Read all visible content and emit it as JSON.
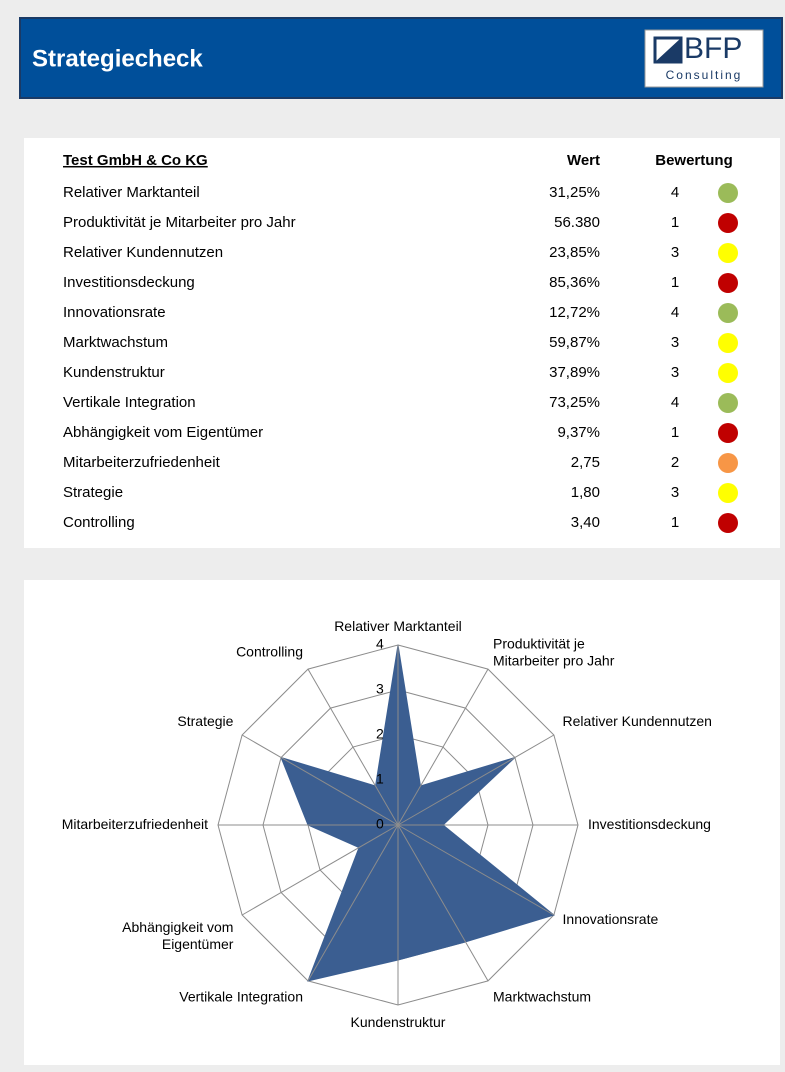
{
  "header": {
    "title": "Strategiecheck",
    "logo": {
      "name": "BFP",
      "sub": "Consulting"
    }
  },
  "table": {
    "columns": [
      "Test GmbH & Co KG",
      "Wert",
      "Bewertung"
    ],
    "rows": [
      {
        "label": "Relativer Marktanteil",
        "value": "31,25%",
        "rating": 4,
        "color": "#9bbb59"
      },
      {
        "label": "Produktivität je Mitarbeiter pro Jahr",
        "value": "56.380",
        "rating": 1,
        "color": "#c00000"
      },
      {
        "label": "Relativer Kundennutzen",
        "value": "23,85%",
        "rating": 3,
        "color": "#ffff00"
      },
      {
        "label": "Investitionsdeckung",
        "value": "85,36%",
        "rating": 1,
        "color": "#c00000"
      },
      {
        "label": "Innovationsrate",
        "value": "12,72%",
        "rating": 4,
        "color": "#9bbb59"
      },
      {
        "label": "Marktwachstum",
        "value": "59,87%",
        "rating": 3,
        "color": "#ffff00"
      },
      {
        "label": "Kundenstruktur",
        "value": "37,89%",
        "rating": 3,
        "color": "#ffff00"
      },
      {
        "label": "Vertikale Integration",
        "value": "73,25%",
        "rating": 4,
        "color": "#9bbb59"
      },
      {
        "label": "Abhängigkeit vom Eigentümer",
        "value": "9,37%",
        "rating": 1,
        "color": "#c00000"
      },
      {
        "label": "Mitarbeiterzufriedenheit",
        "value": "2,75",
        "rating": 2,
        "color": "#f79646"
      },
      {
        "label": "Strategie",
        "value": "1,80",
        "rating": 3,
        "color": "#ffff00"
      },
      {
        "label": "Controlling",
        "value": "3,40",
        "rating": 1,
        "color": "#c00000"
      }
    ]
  },
  "chart_data": {
    "type": "radar",
    "categories": [
      "Relativer Marktanteil",
      "Produktivität je\nMitarbeiter pro Jahr",
      "Relativer Kundennutzen",
      "Investitionsdeckung",
      "Innovationsrate",
      "Marktwachstum",
      "Kundenstruktur",
      "Vertikale Integration",
      "Abhängigkeit vom\nEigentümer",
      "Mitarbeiterzufriedenheit",
      "Strategie",
      "Controlling"
    ],
    "values": [
      4,
      1,
      3,
      1,
      4,
      3,
      3,
      4,
      1,
      2,
      3,
      1
    ],
    "color": "#3b5e91",
    "rlim": [
      0,
      4
    ],
    "rticks": [
      0,
      1,
      2,
      3,
      4
    ],
    "grid": true
  }
}
